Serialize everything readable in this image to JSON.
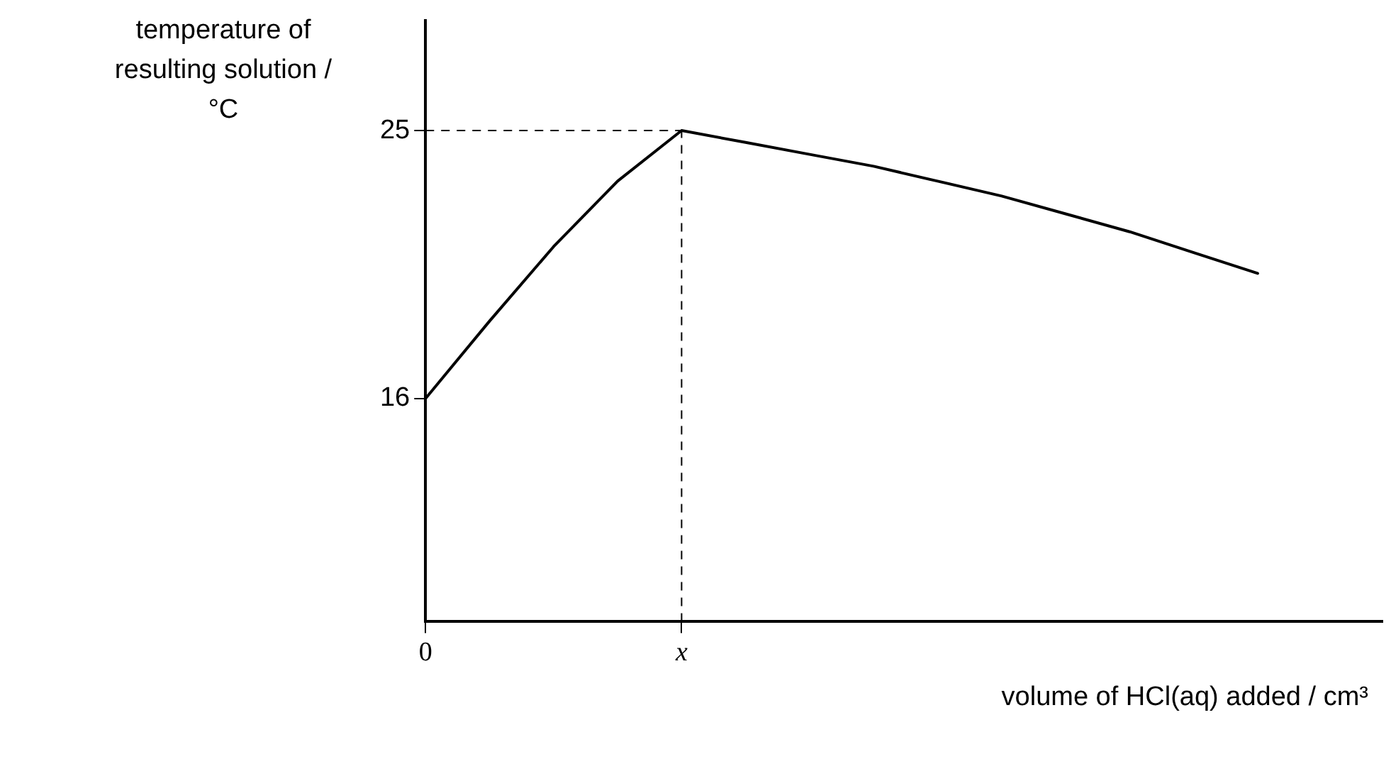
{
  "chart_data": {
    "type": "line",
    "xlabel": "volume of HCl(aq) added / cm³",
    "ylabel": "temperature of resulting solution / °C",
    "categories": [
      "0",
      null,
      null,
      null,
      "x",
      null,
      null,
      null,
      null,
      null,
      null,
      null,
      null,
      null
    ],
    "series": [
      {
        "color": "#000000",
        "values": [
          16,
          18.6,
          21.1,
          23.3,
          25,
          24.6,
          24.2,
          23.8,
          23.3,
          22.8,
          22.2,
          21.6,
          20.9,
          20.2
        ]
      }
    ],
    "ylim": [
      8.5,
      28.7
    ],
    "yticks": [
      16,
      25
    ],
    "ref_lines": [
      {
        "axis": "y",
        "value": 25,
        "line_style": "dashed"
      },
      {
        "axis": "x",
        "value": "x",
        "line_style": "dashed"
      }
    ],
    "grid": false,
    "legend": false,
    "marker": "none",
    "line_style": "solid"
  }
}
